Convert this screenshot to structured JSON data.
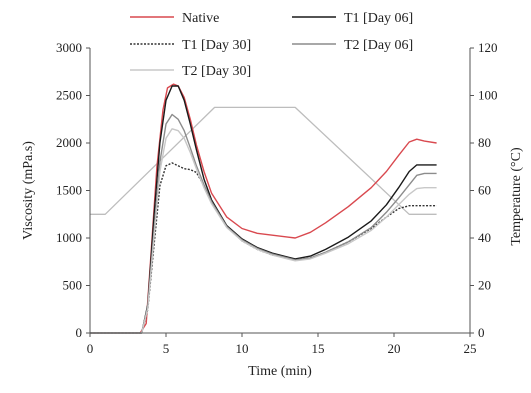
{
  "chart_data": {
    "type": "line",
    "xlabel": "Time (min)",
    "ylabel": "Viscosity (mPa.s)",
    "y2label": "Temperature (°C)",
    "xlim": [
      0,
      25
    ],
    "ylim": [
      0,
      3000
    ],
    "y2lim": [
      0,
      120
    ],
    "xticks": [
      "0",
      "5",
      "10",
      "15",
      "20",
      "25"
    ],
    "yticks": [
      "0",
      "500",
      "1000",
      "1500",
      "2000",
      "2500",
      "3000"
    ],
    "y2ticks": [
      "0",
      "20",
      "40",
      "60",
      "80",
      "100",
      "120"
    ],
    "grid": false,
    "legend_position": "top",
    "series": [
      {
        "name": "Native",
        "color": "#d9494f",
        "dash": "solid",
        "axis": "left",
        "x": [
          0,
          3.3,
          3.7,
          4.0,
          4.4,
          4.8,
          5.1,
          5.5,
          5.8,
          6.2,
          6.6,
          7.0,
          7.5,
          8.0,
          9.0,
          10.0,
          11.0,
          12.0,
          13.0,
          13.5,
          14.5,
          15.5,
          17.0,
          18.5,
          19.5,
          20.3,
          21.0,
          21.5,
          22.0,
          22.8
        ],
        "y": [
          0,
          0,
          100,
          800,
          1750,
          2350,
          2580,
          2620,
          2600,
          2480,
          2250,
          1980,
          1700,
          1470,
          1220,
          1100,
          1050,
          1030,
          1010,
          1000,
          1060,
          1160,
          1330,
          1530,
          1700,
          1870,
          2010,
          2040,
          2020,
          2000
        ]
      },
      {
        "name": "T1 [Day 06]",
        "color": "#1a1a1a",
        "dash": "solid",
        "axis": "left",
        "x": [
          0,
          3.4,
          3.8,
          4.2,
          4.6,
          5.0,
          5.4,
          5.8,
          6.2,
          6.6,
          7.0,
          7.5,
          8.0,
          9.0,
          10.0,
          11.0,
          12.0,
          13.0,
          13.5,
          14.5,
          15.5,
          17.0,
          18.5,
          19.5,
          20.3,
          21.0,
          21.5,
          22.0,
          22.8
        ],
        "y": [
          0,
          0,
          300,
          1200,
          2000,
          2450,
          2600,
          2600,
          2450,
          2200,
          1930,
          1620,
          1400,
          1130,
          990,
          900,
          840,
          800,
          780,
          810,
          880,
          1010,
          1180,
          1350,
          1530,
          1700,
          1770,
          1770,
          1770
        ]
      },
      {
        "name": "T1 [Day 30]",
        "color": "#333333",
        "dash": "dotted",
        "axis": "left",
        "x": [
          0,
          3.4,
          3.8,
          4.2,
          4.6,
          5.0,
          5.4,
          5.8,
          6.2,
          6.6,
          7.0,
          7.5,
          8.0,
          9.0,
          10.0,
          11.0,
          12.0,
          13.0,
          13.5,
          14.5,
          15.5,
          17.0,
          18.5,
          19.5,
          20.3,
          21.0,
          21.5,
          22.0,
          22.8
        ],
        "y": [
          0,
          0,
          250,
          900,
          1550,
          1760,
          1790,
          1760,
          1730,
          1720,
          1690,
          1550,
          1380,
          1120,
          970,
          880,
          820,
          790,
          770,
          790,
          850,
          960,
          1100,
          1220,
          1310,
          1340,
          1340,
          1340,
          1340
        ]
      },
      {
        "name": "T2 [Day 06]",
        "color": "#8c8c8c",
        "dash": "solid",
        "axis": "left",
        "x": [
          0,
          3.4,
          3.8,
          4.2,
          4.6,
          5.0,
          5.4,
          5.8,
          6.2,
          6.6,
          7.0,
          7.5,
          8.0,
          9.0,
          10.0,
          11.0,
          12.0,
          13.0,
          13.5,
          14.5,
          15.5,
          17.0,
          18.5,
          19.5,
          20.3,
          21.0,
          21.5,
          22.0,
          22.8
        ],
        "y": [
          0,
          0,
          280,
          1050,
          1800,
          2200,
          2300,
          2250,
          2130,
          1950,
          1760,
          1560,
          1380,
          1120,
          980,
          890,
          830,
          790,
          770,
          790,
          850,
          960,
          1110,
          1270,
          1420,
          1560,
          1660,
          1680,
          1680
        ]
      },
      {
        "name": "T2 [Day 30]",
        "color": "#c8c8c8",
        "dash": "solid",
        "axis": "left",
        "x": [
          0,
          3.4,
          3.8,
          4.2,
          4.6,
          5.0,
          5.4,
          5.8,
          6.2,
          6.6,
          7.0,
          7.5,
          8.0,
          9.0,
          10.0,
          11.0,
          12.0,
          13.0,
          13.5,
          14.5,
          15.5,
          17.0,
          18.5,
          19.5,
          20.3,
          21.0,
          21.5,
          22.0,
          22.8
        ],
        "y": [
          0,
          0,
          260,
          980,
          1700,
          2050,
          2150,
          2130,
          2050,
          1900,
          1730,
          1530,
          1360,
          1110,
          970,
          880,
          820,
          780,
          760,
          780,
          840,
          940,
          1080,
          1220,
          1350,
          1460,
          1520,
          1530,
          1530
        ]
      },
      {
        "name": "Temperature",
        "color": "#bdbdbd",
        "dash": "solid",
        "axis": "right",
        "x": [
          0,
          1.0,
          8.2,
          13.5,
          21.0,
          22.8
        ],
        "y": [
          50,
          50,
          95,
          95,
          50,
          50
        ]
      }
    ]
  }
}
